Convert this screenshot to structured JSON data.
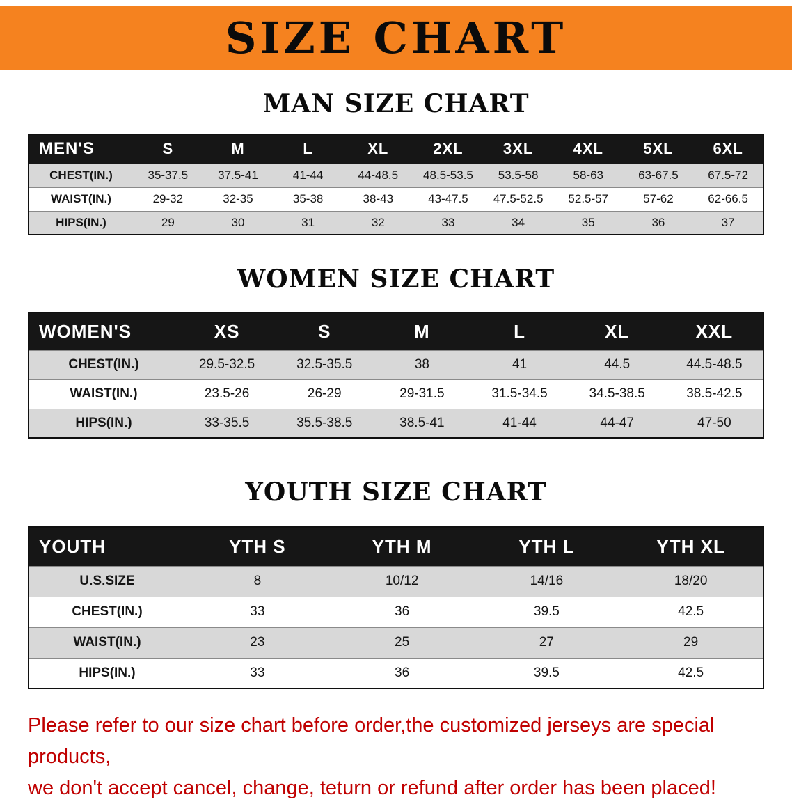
{
  "colors": {
    "banner-bg": "#f5821f",
    "header-bg": "#161616",
    "header-text": "#ffffff",
    "row-alt": "#d8d8d8",
    "red": "#c00000"
  },
  "banner": {
    "title": "SIZE CHART"
  },
  "sections": [
    {
      "heading": "MAN SIZE CHART",
      "table": {
        "header": [
          "MEN'S",
          "S",
          "M",
          "L",
          "XL",
          "2XL",
          "3XL",
          "4XL",
          "5XL",
          "6XL"
        ],
        "rows": [
          [
            "CHEST(IN.)",
            "35-37.5",
            "37.5-41",
            "41-44",
            "44-48.5",
            "48.5-53.5",
            "53.5-58",
            "58-63",
            "63-67.5",
            "67.5-72"
          ],
          [
            "WAIST(IN.)",
            "29-32",
            "32-35",
            "35-38",
            "38-43",
            "43-47.5",
            "47.5-52.5",
            "52.5-57",
            "57-62",
            "62-66.5"
          ],
          [
            "HIPS(IN.)",
            "29",
            "30",
            "31",
            "32",
            "33",
            "34",
            "35",
            "36",
            "37"
          ]
        ]
      }
    },
    {
      "heading": "WOMEN SIZE CHART",
      "table": {
        "header": [
          "WOMEN'S",
          "XS",
          "S",
          "M",
          "L",
          "XL",
          "XXL"
        ],
        "rows": [
          [
            "CHEST(IN.)",
            "29.5-32.5",
            "32.5-35.5",
            "38",
            "41",
            "44.5",
            "44.5-48.5"
          ],
          [
            "WAIST(IN.)",
            "23.5-26",
            "26-29",
            "29-31.5",
            "31.5-34.5",
            "34.5-38.5",
            "38.5-42.5"
          ],
          [
            "HIPS(IN.)",
            "33-35.5",
            "35.5-38.5",
            "38.5-41",
            "41-44",
            "44-47",
            "47-50"
          ]
        ]
      }
    },
    {
      "heading": "YOUTH SIZE CHART",
      "table": {
        "header": [
          "YOUTH",
          "YTH S",
          "YTH M",
          "YTH L",
          "YTH XL"
        ],
        "rows": [
          [
            "U.S.SIZE",
            "8",
            "10/12",
            "14/16",
            "18/20"
          ],
          [
            "CHEST(IN.)",
            "33",
            "36",
            "39.5",
            "42.5"
          ],
          [
            "WAIST(IN.)",
            "23",
            "25",
            "27",
            "29"
          ],
          [
            "HIPS(IN.)",
            "33",
            "36",
            "39.5",
            "42.5"
          ]
        ]
      }
    }
  ],
  "disclaimer": {
    "lines": [
      "Please refer to our size chart before order,the customized jerseys are special products,",
      "we don't accept cancel, change, teturn or refund after order has been placed!"
    ]
  }
}
